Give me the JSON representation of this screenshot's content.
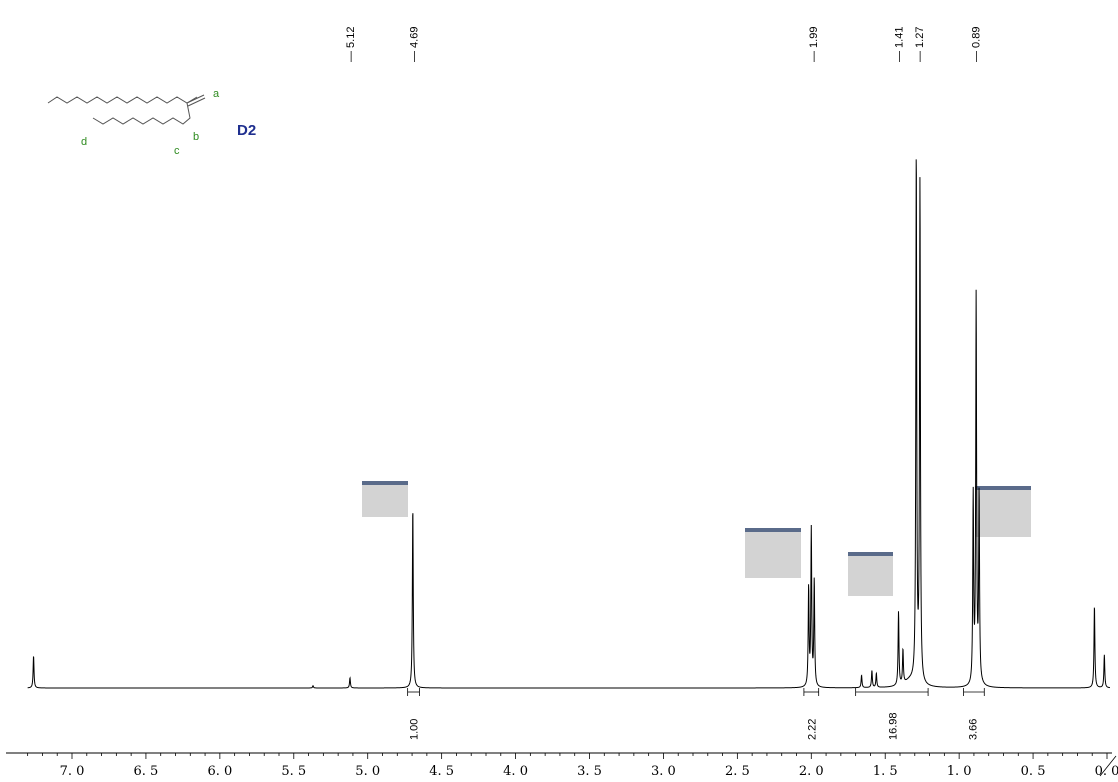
{
  "chart_data": {
    "type": "line",
    "title": "",
    "xlabel": "",
    "ylabel": "",
    "xlim": [
      7.3,
      0.0
    ],
    "x_reversed": true,
    "x_ticks": [
      "7. 0",
      "6. 5",
      "6. 0",
      "5. 5",
      "5. 0",
      "4. 5",
      "4. 0",
      "3. 5",
      "3. 0",
      "2. 5",
      "2. 0",
      "1. 5",
      "1. 0",
      "0. 5",
      "0. 0"
    ],
    "x_tick_values": [
      7.0,
      6.5,
      6.0,
      5.5,
      5.0,
      4.5,
      4.0,
      3.5,
      3.0,
      2.5,
      2.0,
      1.5,
      1.0,
      0.5,
      0.0
    ],
    "peak_labels": [
      {
        "text": "5.12",
        "ppm": 5.12
      },
      {
        "text": "4.69",
        "ppm": 4.69
      },
      {
        "text": "1.99",
        "ppm": 1.99
      },
      {
        "text": "1.41",
        "ppm": 1.41
      },
      {
        "text": "1.27",
        "ppm": 1.27
      },
      {
        "text": "0.89",
        "ppm": 0.89
      }
    ],
    "integrals": [
      {
        "text": "1.00",
        "from": 4.73,
        "to": 4.65,
        "label_ppm": 4.69
      },
      {
        "text": "2.22",
        "from": 2.05,
        "to": 1.95,
        "label_ppm": 2.0
      },
      {
        "text": "16.98",
        "from": 1.7,
        "to": 1.21,
        "label_ppm": 1.45
      },
      {
        "text": "3.66",
        "from": 0.97,
        "to": 0.83,
        "label_ppm": 0.91
      }
    ],
    "peaks": [
      {
        "ppm": 7.26,
        "height": 0.057
      },
      {
        "ppm": 5.37,
        "height": 0.004
      },
      {
        "ppm": 5.12,
        "height": 0.018
      },
      {
        "ppm": 4.695,
        "height": 0.318
      },
      {
        "ppm": 2.018,
        "height": 0.173
      },
      {
        "ppm": 2.0,
        "height": 0.275
      },
      {
        "ppm": 1.98,
        "height": 0.186
      },
      {
        "ppm": 1.66,
        "height": 0.022
      },
      {
        "ppm": 1.59,
        "height": 0.03
      },
      {
        "ppm": 1.56,
        "height": 0.025
      },
      {
        "ppm": 1.41,
        "height": 0.13
      },
      {
        "ppm": 1.38,
        "height": 0.06
      },
      {
        "ppm": 1.29,
        "height": 0.93
      },
      {
        "ppm": 1.265,
        "height": 0.88
      },
      {
        "ppm": 0.905,
        "height": 0.33
      },
      {
        "ppm": 0.885,
        "height": 0.68
      },
      {
        "ppm": 0.865,
        "height": 0.33
      },
      {
        "ppm": 0.085,
        "height": 0.145
      },
      {
        "ppm": 0.018,
        "height": 0.058
      }
    ]
  },
  "structure": {
    "compound": "D2",
    "atom_labels": [
      "a",
      "b",
      "c",
      "d"
    ]
  },
  "colors": {
    "spectrum": "#000000",
    "atom_labels": "#2e8b1f",
    "compound_label": "#1f2f8f",
    "label_patch": "#d3d3d3"
  }
}
